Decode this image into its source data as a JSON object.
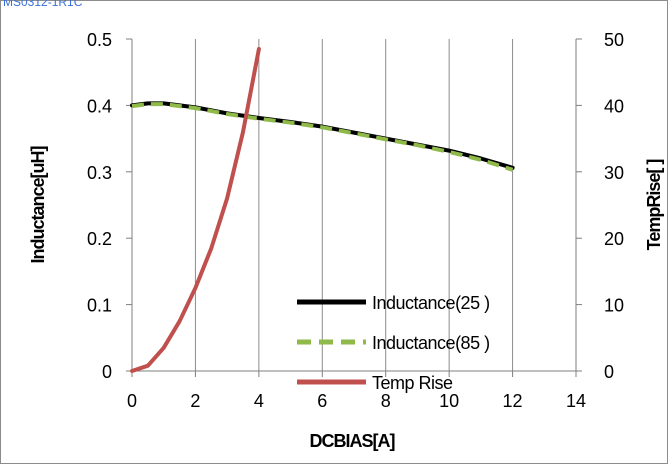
{
  "header": {
    "top_label": "MS0312-1R1C"
  },
  "chart_data": {
    "type": "line",
    "xlabel": "DCBIAS[A]",
    "ylabel_left": "Inductance[uH]",
    "ylabel_right": "TempRise[    ]",
    "xlim": [
      0,
      14
    ],
    "ylim_left": [
      0,
      0.5
    ],
    "ylim_right": [
      0,
      50
    ],
    "x_ticks": [
      "0",
      "2",
      "4",
      "6",
      "8",
      "10",
      "12",
      "14"
    ],
    "y_left_ticks": [
      "0",
      "0.1",
      "0.2",
      "0.3",
      "0.4",
      "0.5"
    ],
    "y_right_ticks": [
      "0",
      "10",
      "20",
      "30",
      "40",
      "50"
    ],
    "grid": "vertical",
    "legend_position": "lower-right",
    "series": [
      {
        "name": "Inductance(25    )",
        "axis": "left",
        "color": "#000000",
        "style": "solid",
        "x": [
          0,
          0.5,
          1,
          2,
          3,
          4,
          5,
          6,
          7,
          8,
          9,
          10,
          11,
          12
        ],
        "y": [
          0.4,
          0.403,
          0.403,
          0.397,
          0.388,
          0.381,
          0.375,
          0.368,
          0.359,
          0.35,
          0.341,
          0.332,
          0.32,
          0.306
        ]
      },
      {
        "name": "Inductance(85    )",
        "axis": "left",
        "color": "#8fba4a",
        "style": "dashed",
        "x": [
          0,
          0.5,
          1,
          2,
          3,
          4,
          5,
          6,
          7,
          8,
          9,
          10,
          11,
          12
        ],
        "y": [
          0.399,
          0.402,
          0.402,
          0.396,
          0.387,
          0.38,
          0.374,
          0.367,
          0.358,
          0.349,
          0.34,
          0.33,
          0.318,
          0.303
        ]
      },
      {
        "name": "Temp Rise",
        "axis": "right",
        "color": "#c0504d",
        "style": "solid",
        "x": [
          0,
          0.5,
          1,
          1.5,
          2,
          2.5,
          3,
          3.5,
          4
        ],
        "y": [
          0,
          0.8,
          3.5,
          7.5,
          12.5,
          18.5,
          26,
          36,
          48.5
        ]
      }
    ]
  }
}
